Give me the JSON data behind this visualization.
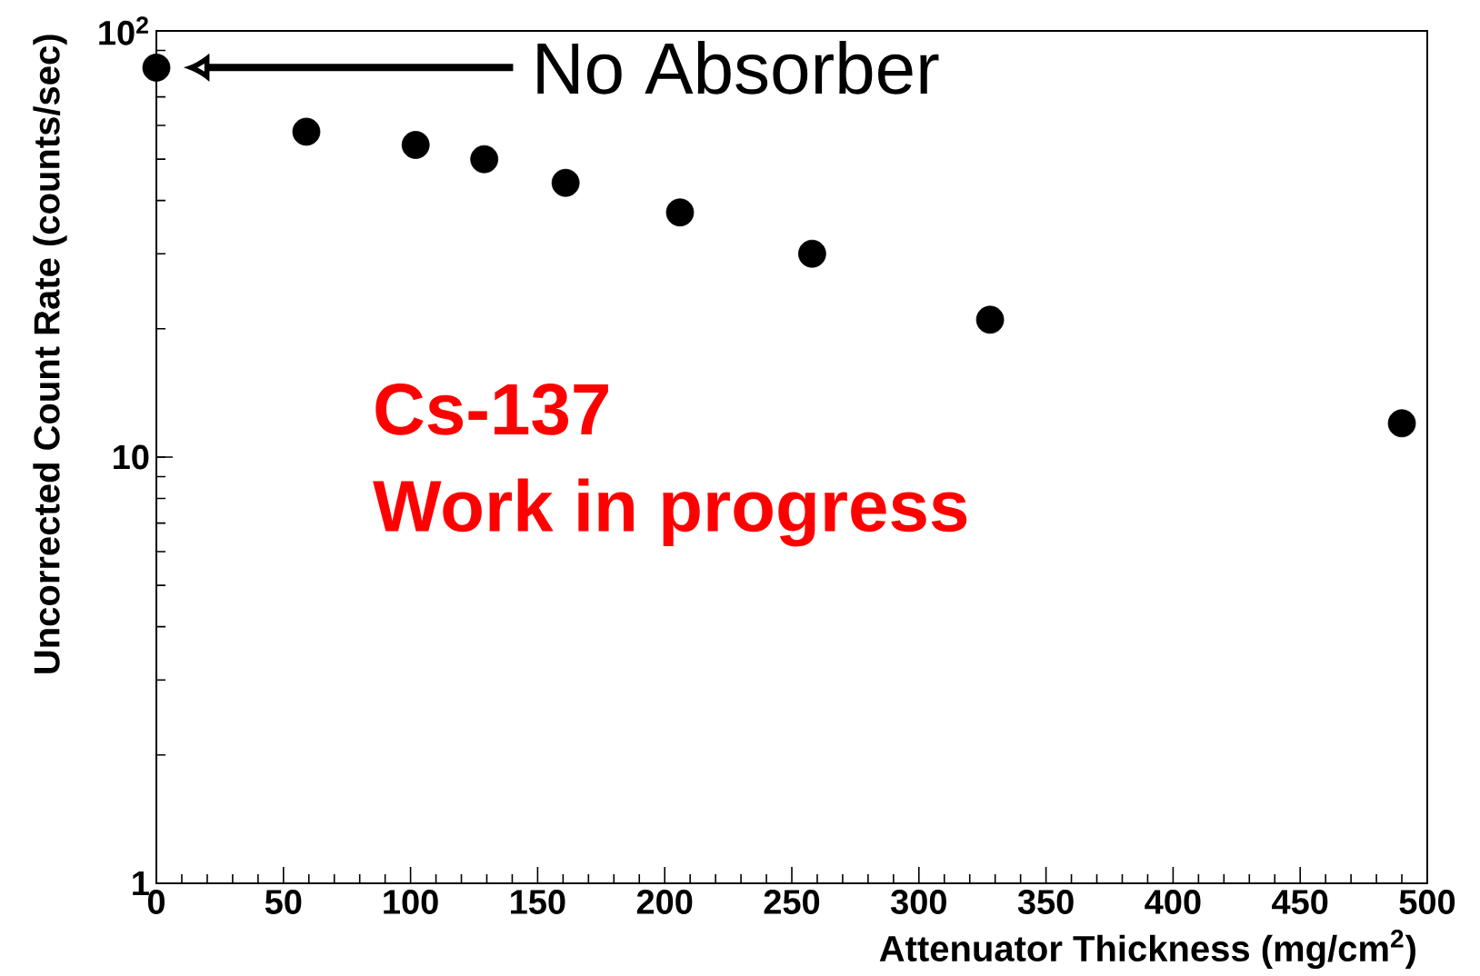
{
  "chart_data": {
    "type": "scatter",
    "xlabel": "Attenuator Thickness  (mg/cm$^{2}$)",
    "ylabel": "Uncorrected Count Rate (counts/sec)",
    "x": [
      0,
      59,
      102,
      129,
      161,
      206,
      258,
      328,
      490
    ],
    "series": [
      {
        "color": "#000000",
        "values": [
          82,
          58,
          54,
          50,
          44,
          37.5,
          30,
          21,
          12
        ]
      }
    ],
    "marker": "circle",
    "log": "y",
    "xlim": [
      0,
      500
    ],
    "ylim": [
      1,
      100
    ],
    "xticks": [
      0,
      50,
      100,
      150,
      200,
      250,
      300,
      350,
      400,
      450,
      500
    ],
    "yticks": [
      1,
      10,
      {
        "value": 100,
        "label": "10$^{2}$"
      }
    ],
    "annotations": [
      "No Absorber",
      "Cs-137",
      "Work in progress"
    ]
  }
}
